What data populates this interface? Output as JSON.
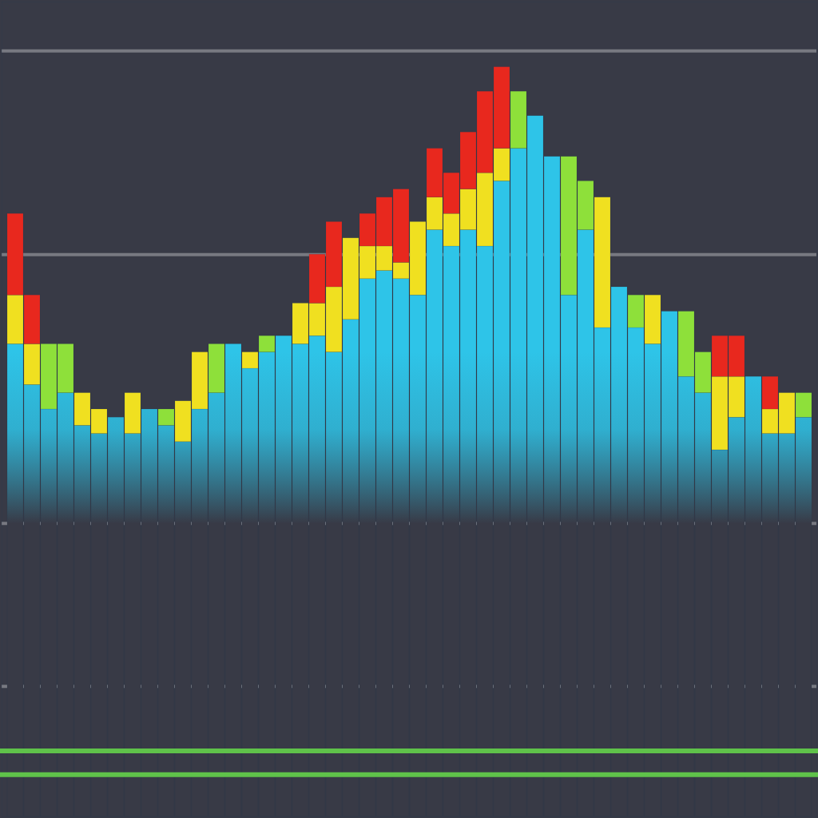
{
  "chart_data": {
    "type": "bar",
    "stacked": true,
    "grid": true,
    "tick_labels": false,
    "categories": [
      null,
      null,
      null,
      null,
      null,
      null,
      null,
      null,
      null,
      null,
      null,
      null,
      null,
      null,
      null,
      null,
      null,
      null,
      null,
      null,
      null,
      null,
      null,
      null,
      null,
      null,
      null,
      null,
      null,
      null,
      null,
      null,
      null,
      null,
      null,
      null,
      null,
      null,
      null,
      null,
      null,
      null,
      null,
      null,
      null,
      null,
      null,
      null
    ],
    "ylim": [
      0,
      100
    ],
    "yticks": [
      16,
      36,
      69,
      94
    ],
    "series": [
      {
        "color": "#2ec4e8",
        "values": [
          58,
          53,
          50,
          52,
          48,
          47,
          49,
          47,
          50,
          48,
          46,
          50,
          52,
          58,
          55,
          57,
          59,
          58,
          59,
          57,
          61,
          66,
          67,
          66,
          64,
          72,
          70,
          72,
          70,
          78,
          82,
          86,
          81,
          64,
          72,
          60,
          65,
          60,
          58,
          62,
          54,
          52,
          45,
          49,
          54,
          47,
          47,
          49
        ]
      },
      {
        "colors": [
          "#f0e020",
          "#f0e020",
          "#8ee03a",
          "#8ee03a",
          "#f0e020",
          "#f0e020",
          "#f0e020",
          "#f0e020",
          "#8ee03a",
          "#8ee03a",
          "#f0e020",
          "#f0e020",
          "#8ee03a",
          "#8ee03a",
          "#f0e020",
          "#8ee03a",
          "#8ee03a",
          "#f0e020",
          "#f0e020",
          "#f0e020",
          "#f0e020",
          "#f0e020",
          "#f0e020",
          "#f0e020",
          "#f0e020",
          "#f0e020",
          "#f0e020",
          "#f0e020",
          "#f0e020",
          "#f0e020",
          "#8ee03a",
          "#8ee03a",
          "#8ee03a",
          "#8ee03a",
          "#8ee03a",
          "#f0e020",
          "#8ee03a",
          "#8ee03a",
          "#f0e020",
          "#8ee03a",
          "#8ee03a",
          "#8ee03a",
          "#f0e020",
          "#f0e020",
          "#8ee03a",
          "#f0e020",
          "#f0e020",
          "#8ee03a"
        ],
        "values": [
          6,
          5,
          8,
          6,
          4,
          3,
          0,
          5,
          0,
          2,
          5,
          7,
          6,
          0,
          2,
          2,
          0,
          5,
          4,
          8,
          10,
          4,
          3,
          2,
          9,
          4,
          4,
          5,
          9,
          4,
          7,
          0,
          0,
          17,
          6,
          16,
          0,
          4,
          6,
          0,
          8,
          5,
          9,
          5,
          0,
          3,
          5,
          3
        ]
      },
      {
        "color": "#e8281e",
        "values": [
          10,
          6,
          0,
          0,
          0,
          0,
          0,
          0,
          0,
          0,
          0,
          0,
          0,
          0,
          0,
          0,
          0,
          0,
          6,
          8,
          0,
          4,
          6,
          9,
          0,
          6,
          5,
          7,
          10,
          10,
          0,
          0,
          0,
          0,
          0,
          0,
          0,
          0,
          0,
          0,
          0,
          0,
          5,
          5,
          0,
          4,
          0,
          0
        ]
      }
    ]
  }
}
